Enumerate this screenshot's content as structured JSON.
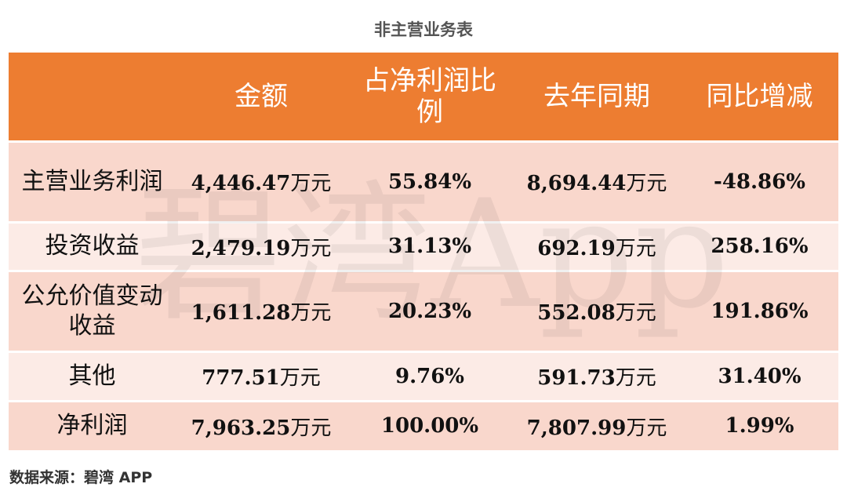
{
  "title": "非主营业务表",
  "watermark": "碧湾App",
  "source": "数据来源：碧湾 APP",
  "chart_data": {
    "type": "table",
    "columns": [
      "",
      "金额",
      "占净利润比例",
      "去年同期",
      "同比增减"
    ],
    "rows": [
      {
        "label": "主营业务利润",
        "amount": "4,446.47",
        "ratio": "55.84%",
        "last_year": "8,694.44",
        "yoy": "-48.86%"
      },
      {
        "label": "投资收益",
        "amount": "2,479.19",
        "ratio": "31.13%",
        "last_year": "692.19",
        "yoy": "258.16%"
      },
      {
        "label": "公允价值变动收益",
        "amount": "1,611.28",
        "ratio": "20.23%",
        "last_year": "552.08",
        "yoy": "191.86%"
      },
      {
        "label": "其他",
        "amount": "777.51",
        "ratio": "9.76%",
        "last_year": "591.73",
        "yoy": "31.40%"
      },
      {
        "label": "净利润",
        "amount": "7,963.25",
        "ratio": "100.00%",
        "last_year": "7,807.99",
        "yoy": "1.99%"
      }
    ],
    "unit": "万元",
    "colors": {
      "header_bg": "#ed7d31",
      "header_text": "#ffffff",
      "row_dark": "#f9d7cc",
      "row_light": "#fcebe6"
    }
  }
}
